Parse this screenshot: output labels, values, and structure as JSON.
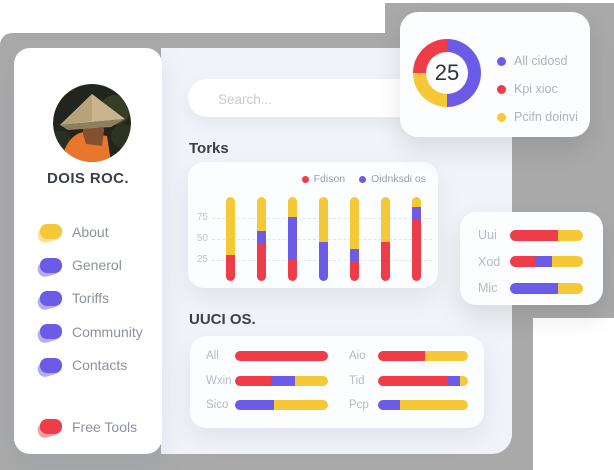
{
  "palette": {
    "red": "#ee3d49",
    "purple": "#6c5be6",
    "yellow": "#f4c836",
    "gray_backdrop": "#a9a9a9",
    "panel_bg": "#f1f3f8",
    "card_bg": "#fcfdfe",
    "text_dark": "#3b3f46",
    "text_menu": "#8d929b",
    "text_muted": "#b5bac3",
    "text_tick": "#c2c6ce"
  },
  "profile": {
    "name": "DOIS ROC."
  },
  "menu": {
    "items": [
      {
        "label": "About",
        "color": "yellow"
      },
      {
        "label": "Generol",
        "color": "purple"
      },
      {
        "label": "Toriffs",
        "color": "purple"
      },
      {
        "label": "Community",
        "color": "purple"
      },
      {
        "label": "Contacts",
        "color": "purple"
      }
    ],
    "footer_item": {
      "label": "Free Tools",
      "color": "red"
    }
  },
  "search": {
    "placeholder": "Search..."
  },
  "sections": {
    "torks_title": "Torks",
    "uuci_title": "UUCI OS."
  },
  "chart_data": [
    {
      "id": "torks",
      "type": "bar",
      "stacked": true,
      "title": "Torks",
      "legend": [
        {
          "name": "Fdison",
          "color": "red"
        },
        {
          "name": "Oidnksdi os",
          "color": "purple"
        }
      ],
      "legend_position": "top-right",
      "grid": "dashed-horizontal",
      "ylim": [
        0,
        100
      ],
      "yticks": [
        25,
        50,
        75
      ],
      "bar_count": 7,
      "series": [
        {
          "name": "Fdison",
          "color": "red",
          "values": [
            31,
            44,
            25,
            0,
            24,
            47,
            73
          ]
        },
        {
          "name": "Oidnksdi os",
          "color": "purple",
          "values": [
            0,
            16,
            51,
            47,
            14,
            0,
            15
          ]
        },
        {
          "name": "",
          "color": "yellow",
          "values": [
            69,
            40,
            24,
            53,
            62,
            53,
            12
          ]
        }
      ]
    },
    {
      "id": "kpi-donut",
      "type": "pie",
      "donut": true,
      "center_label": "25",
      "slices_clockwise_from_top": [
        {
          "label": "All cidosd",
          "color": "purple",
          "value": 50
        },
        {
          "label": "Pcifn doinvi",
          "color": "yellow",
          "value": 25
        },
        {
          "label": "Kpi xioc",
          "color": "red",
          "value": 25
        }
      ],
      "legend_display_order": [
        "All cidosd",
        "Kpi xioc",
        "Pcifn doinvi"
      ]
    },
    {
      "id": "side-bars",
      "type": "bar",
      "horizontal": true,
      "stacked": true,
      "unit": "percent",
      "rows": [
        {
          "label": "Uui",
          "segments": [
            {
              "color": "red",
              "value": 66
            },
            {
              "color": "yellow",
              "value": 34
            }
          ]
        },
        {
          "label": "Xod",
          "segments": [
            {
              "color": "red",
              "value": 34
            },
            {
              "color": "purple",
              "value": 23
            },
            {
              "color": "yellow",
              "value": 43
            }
          ]
        },
        {
          "label": "Mic",
          "segments": [
            {
              "color": "purple",
              "value": 66
            },
            {
              "color": "yellow",
              "value": 34
            }
          ]
        }
      ]
    },
    {
      "id": "uuci-os",
      "type": "bar",
      "horizontal": true,
      "stacked": true,
      "title": "UUCI OS.",
      "unit": "percent",
      "columns": [
        [
          {
            "label": "All",
            "segments": [
              {
                "color": "red",
                "value": 100
              }
            ]
          },
          {
            "label": "Wxin",
            "segments": [
              {
                "color": "red",
                "value": 39
              },
              {
                "color": "purple",
                "value": 25
              },
              {
                "color": "yellow",
                "value": 36
              }
            ]
          },
          {
            "label": "Sico",
            "segments": [
              {
                "color": "purple",
                "value": 42
              },
              {
                "color": "yellow",
                "value": 58
              }
            ]
          }
        ],
        [
          {
            "label": "Aio",
            "segments": [
              {
                "color": "red",
                "value": 52
              },
              {
                "color": "yellow",
                "value": 48
              }
            ]
          },
          {
            "label": "Tid",
            "segments": [
              {
                "color": "red",
                "value": 78
              },
              {
                "color": "purple",
                "value": 13
              },
              {
                "color": "yellow",
                "value": 9
              }
            ]
          },
          {
            "label": "Pcp",
            "segments": [
              {
                "color": "purple",
                "value": 24
              },
              {
                "color": "yellow",
                "value": 76
              }
            ]
          }
        ]
      ]
    }
  ],
  "donut_legend": [
    {
      "label": "All cidosd",
      "color": "purple"
    },
    {
      "label": "Kpi xioc",
      "color": "red"
    },
    {
      "label": "Pcifn doinvi",
      "color": "yellow"
    }
  ]
}
